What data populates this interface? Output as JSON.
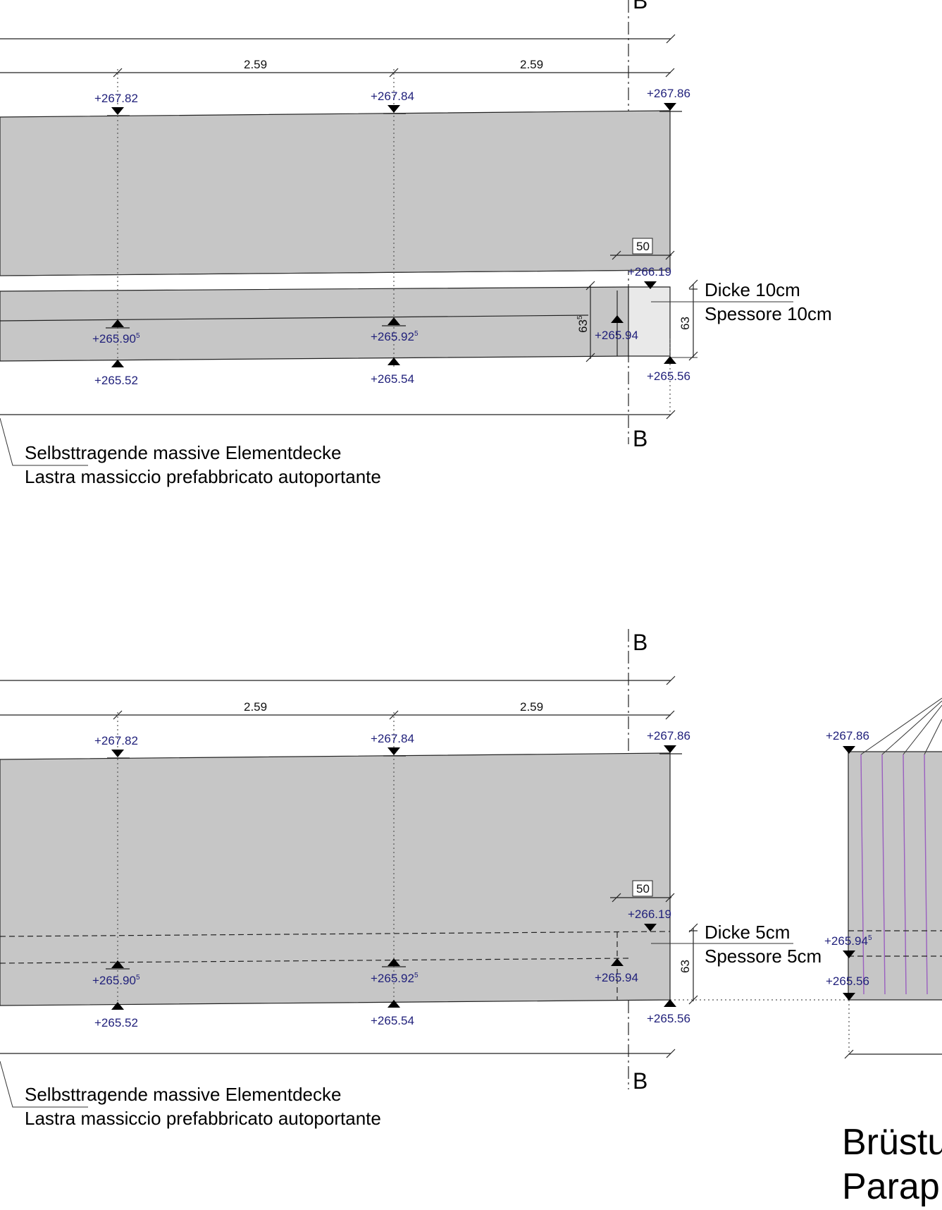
{
  "section_marker": "B",
  "detail_top": {
    "dims": {
      "span_a": "2.59",
      "span_b": "2.59",
      "offset": "50",
      "height_a": "63",
      "height_b": "63"
    },
    "height_a_sup": "5",
    "elevations": {
      "top_left": "+267.82",
      "top_mid": "+267.84",
      "top_right": "+267.86",
      "upper_right": "+266.19",
      "mid_left": "+265.90",
      "mid_left_sup": "5",
      "mid_mid": "+265.92",
      "mid_mid_sup": "5",
      "mid_right": "+265.94",
      "bottom_left": "+265.52",
      "bottom_mid": "+265.54",
      "bottom_right": "+265.56"
    },
    "thickness_de": "Dicke 10cm",
    "thickness_it": "Spessore 10cm",
    "caption_de": "Selbsttragende massive Elementdecke",
    "caption_it": "Lastra massiccio prefabbricato autoportante"
  },
  "detail_bottom": {
    "dims": {
      "span_a": "2.59",
      "span_b": "2.59",
      "offset": "50",
      "height": "63"
    },
    "elevations": {
      "top_left": "+267.82",
      "top_mid": "+267.84",
      "top_right": "+267.86",
      "upper_right": "+266.19",
      "mid_left": "+265.90",
      "mid_left_sup": "5",
      "mid_mid": "+265.92",
      "mid_mid_sup": "5",
      "mid_right": "+265.94",
      "bottom_left": "+265.52",
      "bottom_mid": "+265.54",
      "bottom_right": "+265.56"
    },
    "thickness_de": "Dicke 5cm",
    "thickness_it": "Spessore 5cm",
    "caption_de": "Selbsttragende massive Elementdecke",
    "caption_it": "Lastra massiccio prefabbricato autoportante"
  },
  "side_detail": {
    "elevations": {
      "top": "+267.86",
      "mid": "+265.94",
      "mid_sup": "5",
      "bottom": "+265.56"
    }
  },
  "title_line1": "Brüstu",
  "title_line2": "Parap",
  "colors": {
    "slab_fill": "#c6c6c6",
    "elevation_text": "#1f1f7a",
    "reinforcement": "#9a5fc0"
  }
}
